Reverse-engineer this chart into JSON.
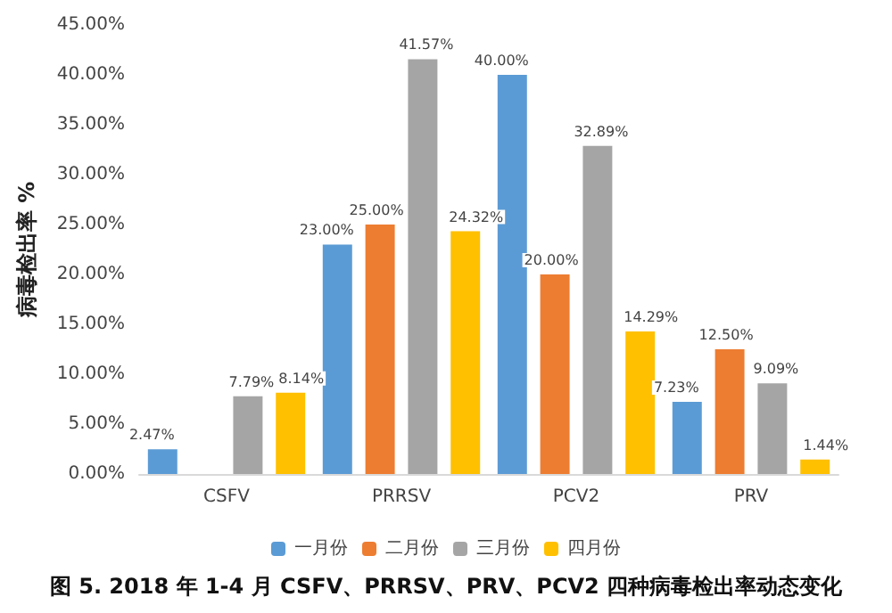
{
  "chart_data": {
    "type": "bar",
    "title": "图 5. 2018 年 1-4 月 CSFV、PRRSV、PRV、PCV2 四种病毒检出率动态变化",
    "ylabel": "病毒检出率 %",
    "categories": [
      "CSFV",
      "PRRSV",
      "PCV2",
      "PRV"
    ],
    "series": [
      {
        "name": "一月份",
        "color": "#5b9bd5",
        "values": [
          2.47,
          23.0,
          40.0,
          7.23
        ],
        "value_labels": [
          "2.47%",
          "23.00%",
          "40.00%",
          "7.23%"
        ]
      },
      {
        "name": "二月份",
        "color": "#ed7d31",
        "values": [
          null,
          25.0,
          20.0,
          12.5
        ],
        "value_labels": [
          null,
          "25.00%",
          "20.00%",
          "12.50%"
        ]
      },
      {
        "name": "三月份",
        "color": "#a5a5a5",
        "values": [
          7.79,
          41.57,
          32.89,
          9.09
        ],
        "value_labels": [
          "7.79%",
          "41.57%",
          "32.89%",
          "9.09%"
        ]
      },
      {
        "name": "四月份",
        "color": "#ffc000",
        "values": [
          8.14,
          24.32,
          14.29,
          1.44
        ],
        "value_labels": [
          "8.14%",
          "24.32%",
          "14.29%",
          "1.44%"
        ]
      }
    ],
    "ylim": [
      0,
      45
    ],
    "yticks": [
      {
        "value": 0,
        "label": "0.00%"
      },
      {
        "value": 5,
        "label": "5.00%"
      },
      {
        "value": 10,
        "label": "10.00%"
      },
      {
        "value": 15,
        "label": "15.00%"
      },
      {
        "value": 20,
        "label": "20.00%"
      },
      {
        "value": 25,
        "label": "25.00%"
      },
      {
        "value": 30,
        "label": "30.00%"
      },
      {
        "value": 35,
        "label": "35.00%"
      },
      {
        "value": 40,
        "label": "40.00%"
      },
      {
        "value": 45,
        "label": "45.00%"
      }
    ],
    "grid": false,
    "legend": "bottom"
  }
}
